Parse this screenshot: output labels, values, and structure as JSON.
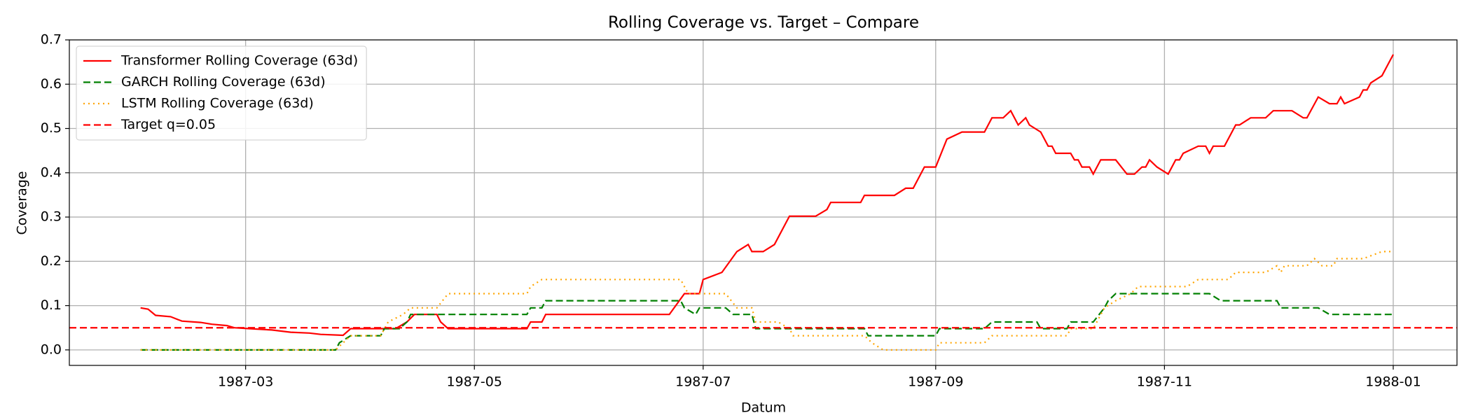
{
  "chart_data": {
    "type": "line",
    "title": "Rolling Coverage vs. Target – Compare",
    "xlabel": "Datum",
    "ylabel": "Coverage",
    "xlim": [
      12,
      382
    ],
    "xticks": [
      {
        "value": 59,
        "label": "1987-03"
      },
      {
        "value": 120,
        "label": "1987-05"
      },
      {
        "value": 181,
        "label": "1987-07"
      },
      {
        "value": 243,
        "label": "1987-09"
      },
      {
        "value": 304,
        "label": "1987-11"
      },
      {
        "value": 365,
        "label": "1988-01"
      }
    ],
    "ylim": [
      -0.035,
      0.7
    ],
    "yticks": [
      {
        "value": 0,
        "label": "0.0"
      },
      0.1,
      0.2,
      0.3,
      0.4,
      0.5,
      0.6,
      0.7
    ],
    "grid": true,
    "legend": "upper left",
    "series": [
      {
        "name": "Transformer Rolling Coverage (63d)",
        "color": "#ff0000",
        "linestyle": "solid",
        "x": [
          31,
          33,
          35,
          39,
          42,
          47,
          50,
          54,
          56,
          60,
          66,
          71,
          76,
          79,
          85,
          87,
          94,
          99,
          102,
          104,
          110,
          111,
          113,
          134,
          135,
          138,
          139,
          172,
          176,
          180,
          181,
          186,
          190,
          193,
          194,
          197,
          200,
          204,
          211,
          214,
          215,
          223,
          224,
          232,
          235,
          237,
          240,
          243,
          246,
          250,
          256,
          258,
          261,
          263,
          265,
          267,
          268,
          271,
          273,
          274,
          275,
          279,
          280,
          281,
          282,
          284,
          285,
          287,
          291,
          294,
          296,
          298,
          299,
          300,
          302,
          305,
          307,
          308,
          309,
          313,
          315,
          316,
          317,
          320,
          323,
          324,
          327,
          331,
          333,
          338,
          341,
          342,
          345,
          348,
          350,
          351,
          352,
          356,
          357,
          358,
          359,
          362,
          365
        ],
        "values": [
          0.095,
          0.092,
          0.078,
          0.075,
          0.065,
          0.062,
          0.058,
          0.055,
          0.05,
          0.048,
          0.045,
          0.04,
          0.038,
          0.035,
          0.033,
          0.048,
          0.048,
          0.048,
          0.063,
          0.08,
          0.08,
          0.063,
          0.048,
          0.048,
          0.063,
          0.063,
          0.08,
          0.08,
          0.127,
          0.127,
          0.159,
          0.175,
          0.222,
          0.238,
          0.222,
          0.222,
          0.238,
          0.302,
          0.302,
          0.317,
          0.333,
          0.333,
          0.349,
          0.349,
          0.365,
          0.365,
          0.413,
          0.413,
          0.476,
          0.492,
          0.492,
          0.524,
          0.524,
          0.54,
          0.508,
          0.524,
          0.508,
          0.492,
          0.46,
          0.46,
          0.444,
          0.444,
          0.429,
          0.429,
          0.413,
          0.413,
          0.397,
          0.429,
          0.429,
          0.397,
          0.397,
          0.413,
          0.413,
          0.429,
          0.413,
          0.397,
          0.429,
          0.429,
          0.444,
          0.46,
          0.46,
          0.444,
          0.46,
          0.46,
          0.508,
          0.508,
          0.524,
          0.524,
          0.54,
          0.54,
          0.524,
          0.524,
          0.571,
          0.556,
          0.556,
          0.571,
          0.556,
          0.571,
          0.587,
          0.587,
          0.603,
          0.619,
          0.667
        ]
      },
      {
        "name": "GARCH Rolling Coverage (63d)",
        "color": "#008000",
        "linestyle": "dashed",
        "x": [
          31,
          83,
          84,
          87,
          95,
          96,
          100,
          102,
          103,
          134,
          135,
          138,
          139,
          175,
          176,
          179,
          180,
          187,
          189,
          194,
          195,
          224,
          225,
          243,
          244,
          256,
          258,
          270,
          271,
          278,
          279,
          285,
          288,
          289,
          291,
          316,
          319,
          334,
          335,
          345,
          348,
          365
        ],
        "values": [
          0,
          0,
          0.016,
          0.032,
          0.032,
          0.048,
          0.048,
          0.063,
          0.08,
          0.08,
          0.095,
          0.095,
          0.111,
          0.111,
          0.095,
          0.08,
          0.095,
          0.095,
          0.08,
          0.08,
          0.048,
          0.048,
          0.032,
          0.032,
          0.048,
          0.048,
          0.063,
          0.063,
          0.048,
          0.048,
          0.063,
          0.063,
          0.095,
          0.111,
          0.127,
          0.127,
          0.111,
          0.111,
          0.095,
          0.095,
          0.08,
          0.08
        ]
      },
      {
        "name": "LSTM Rolling Coverage (63d)",
        "color": "#ffa500",
        "linestyle": "dotted",
        "x": [
          31,
          83,
          85,
          87,
          95,
          97,
          101,
          103,
          110,
          113,
          134,
          135,
          138,
          175,
          177,
          187,
          190,
          194,
          195,
          201,
          204,
          205,
          224,
          226,
          229,
          243,
          244,
          256,
          258,
          278,
          279,
          285,
          288,
          291,
          295,
          297,
          310,
          313,
          321,
          323,
          331,
          334,
          335,
          336,
          342,
          344,
          346,
          349,
          350,
          357,
          362,
          365
        ],
        "values": [
          0,
          0,
          0.016,
          0.032,
          0.032,
          0.063,
          0.08,
          0.095,
          0.095,
          0.127,
          0.127,
          0.143,
          0.159,
          0.159,
          0.127,
          0.127,
          0.095,
          0.095,
          0.063,
          0.063,
          0.048,
          0.032,
          0.032,
          0.016,
          0,
          0,
          0.016,
          0.016,
          0.032,
          0.032,
          0.048,
          0.048,
          0.095,
          0.111,
          0.127,
          0.143,
          0.143,
          0.159,
          0.159,
          0.175,
          0.175,
          0.19,
          0.175,
          0.19,
          0.19,
          0.206,
          0.19,
          0.19,
          0.206,
          0.206,
          0.222,
          0.222
        ]
      }
    ],
    "reference_line": {
      "name": "Target q=0.05",
      "color": "#ff0000",
      "linestyle": "dashed",
      "value": 0.05
    }
  }
}
